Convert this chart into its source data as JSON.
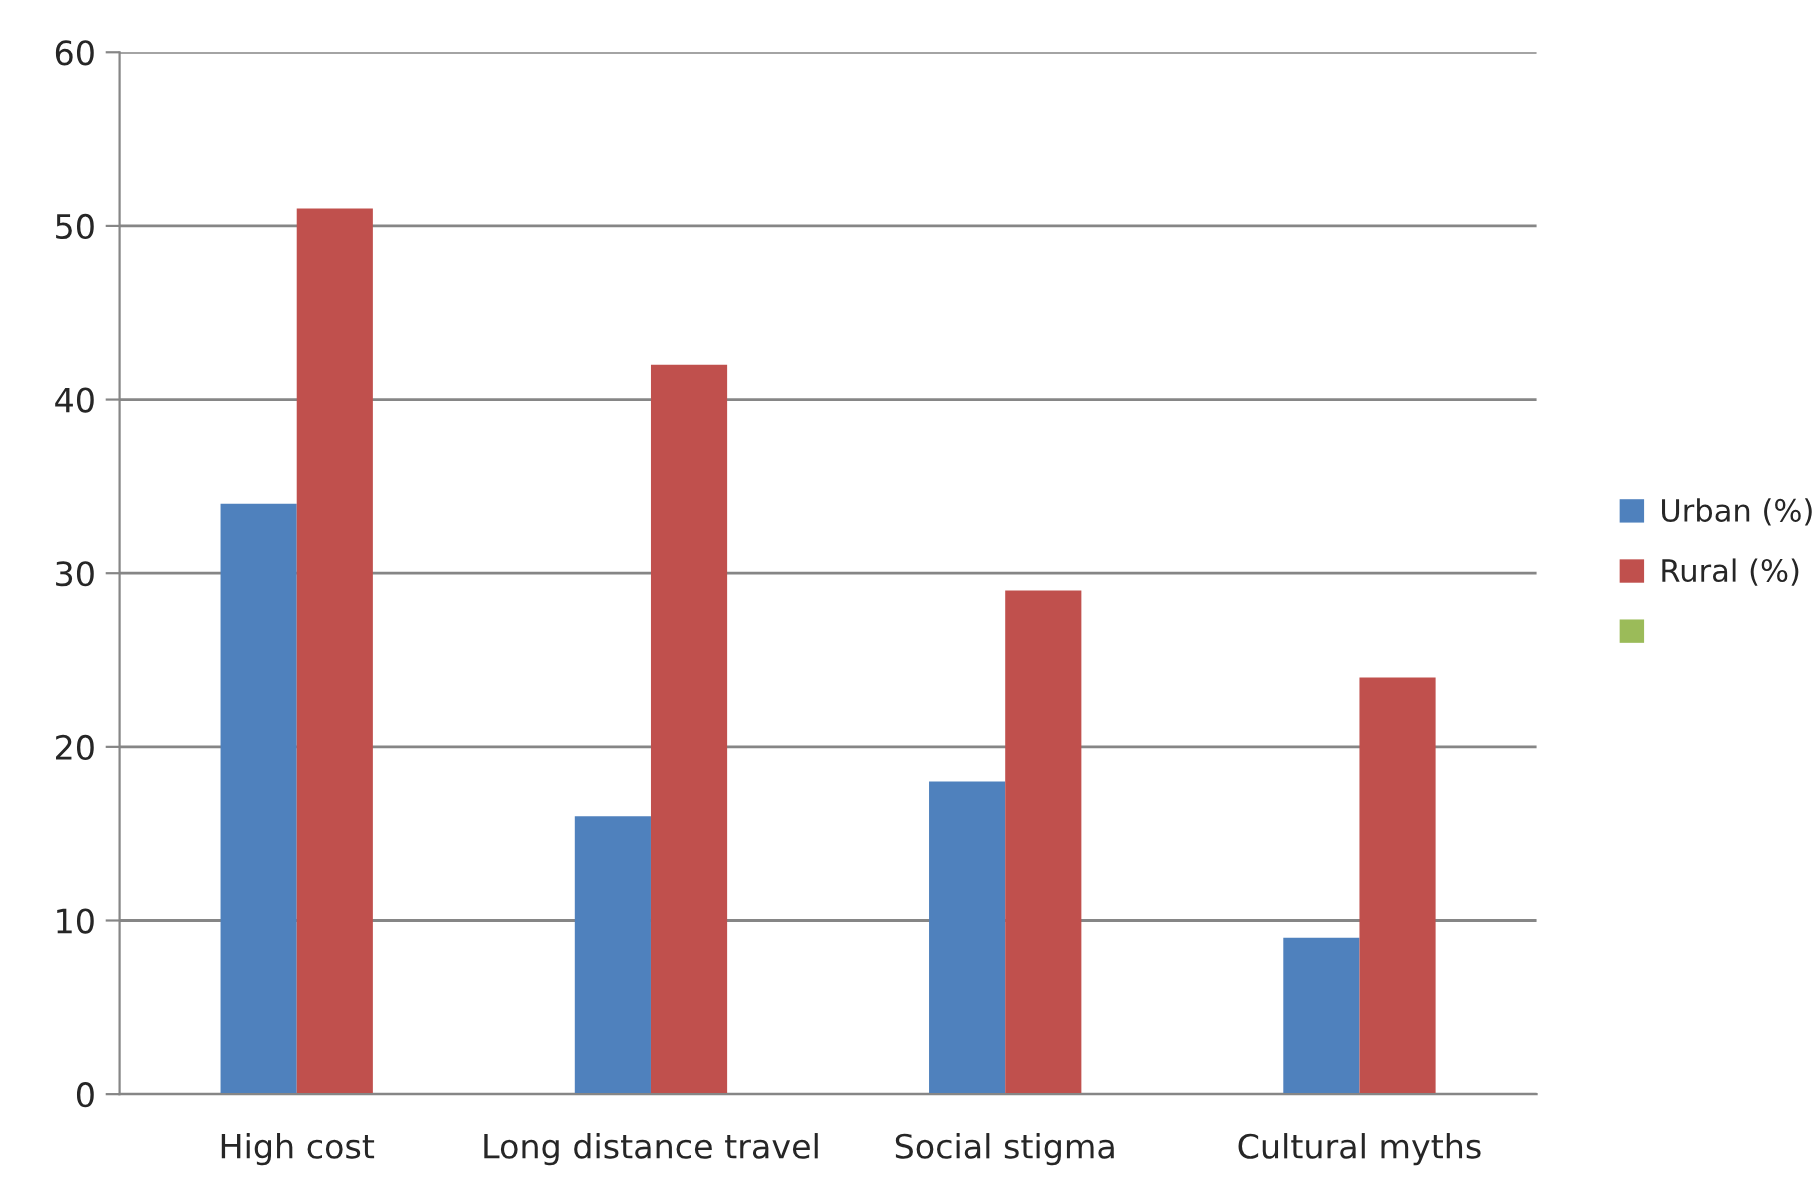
{
  "chart_data": {
    "type": "bar",
    "categories": [
      "High cost",
      "Long distance travel",
      "Social stigma",
      "Cultural myths"
    ],
    "series": [
      {
        "name": "Urban (%)",
        "color": "#4f81bd",
        "values": [
          34,
          16,
          18,
          9
        ]
      },
      {
        "name": "Rural (%)",
        "color": "#c0504d",
        "values": [
          51,
          42,
          29,
          24
        ]
      },
      {
        "color": "#9bbb59",
        "values": [
          null,
          null,
          null,
          null
        ]
      }
    ],
    "ylim": [
      0,
      60
    ],
    "yticks": [
      0,
      10,
      20,
      30,
      40,
      50,
      60
    ],
    "grid": "y",
    "legend": "right"
  }
}
